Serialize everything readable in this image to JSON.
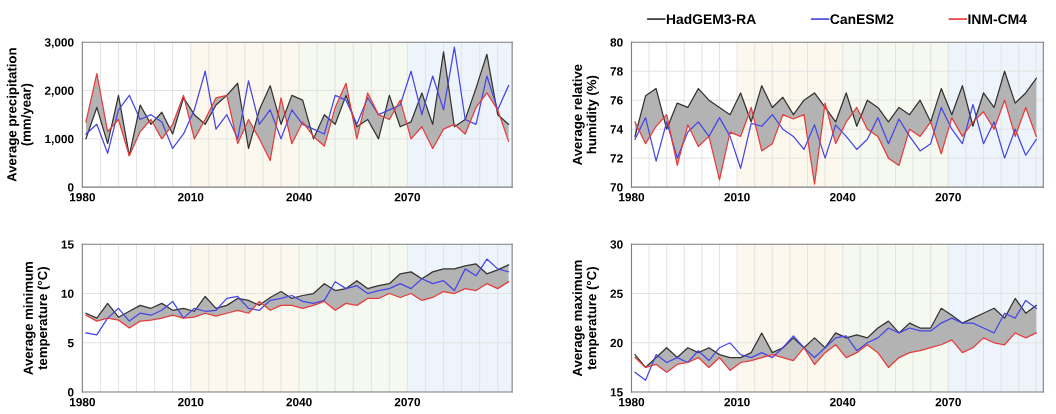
{
  "chart_data": [
    {
      "type": "line",
      "ylabel": "Average precipitation\n(mm/year)",
      "xlim": [
        1980,
        2099
      ],
      "ylim": [
        0,
        3000
      ],
      "xticks": [
        1980,
        {
          "value": 1985,
          "label": null
        },
        {
          "value": 1990,
          "label": null
        },
        {
          "value": 1995,
          "label": null
        },
        {
          "value": 2000,
          "label": null
        },
        {
          "value": 2005,
          "label": null
        },
        2010,
        {
          "value": 2015,
          "label": null
        },
        {
          "value": 2020,
          "label": null
        },
        {
          "value": 2025,
          "label": null
        },
        {
          "value": 2030,
          "label": null
        },
        {
          "value": 2035,
          "label": null
        },
        2040,
        {
          "value": 2045,
          "label": null
        },
        {
          "value": 2050,
          "label": null
        },
        {
          "value": 2055,
          "label": null
        },
        {
          "value": 2060,
          "label": null
        },
        {
          "value": 2065,
          "label": null
        },
        2070,
        {
          "value": 2075,
          "label": null
        },
        {
          "value": 2080,
          "label": null
        },
        {
          "value": 2085,
          "label": null
        },
        {
          "value": 2090,
          "label": null
        },
        {
          "value": 2095,
          "label": null
        }
      ],
      "yticks": [
        0,
        {
          "value": 1000,
          "label": "1,000"
        },
        {
          "value": 2000,
          "label": "2,000"
        },
        {
          "value": 3000,
          "label": "3,000"
        }
      ],
      "grid": true,
      "bands": [
        {
          "axis": "x",
          "from": 2010,
          "to": 2040,
          "color": "#fdf8ee"
        },
        {
          "axis": "x",
          "from": 2040,
          "to": 2070,
          "color": "#f5f9f0"
        },
        {
          "axis": "x",
          "from": 2070,
          "to": 2099,
          "color": "#eef4fb"
        }
      ],
      "x": [
        1981,
        1984,
        1987,
        1990,
        1993,
        1996,
        1999,
        2002,
        2005,
        2008,
        2011,
        2014,
        2017,
        2020,
        2023,
        2026,
        2029,
        2032,
        2035,
        2038,
        2041,
        2044,
        2047,
        2050,
        2053,
        2056,
        2059,
        2062,
        2065,
        2068,
        2071,
        2074,
        2077,
        2080,
        2083,
        2086,
        2089,
        2092,
        2095,
        2098
      ],
      "series": [
        {
          "color": "#333333",
          "values": [
            1000,
            1650,
            900,
            1900,
            650,
            1700,
            1300,
            1550,
            1100,
            1850,
            1500,
            1300,
            1700,
            1900,
            2150,
            800,
            1600,
            2100,
            1300,
            1900,
            1800,
            1000,
            1500,
            1300,
            1900,
            1250,
            1400,
            1000,
            1900,
            1250,
            1350,
            1950,
            1300,
            2800,
            1250,
            1400,
            2050,
            2750,
            1500,
            1300
          ],
          "lower": [
            1350,
            2350,
            1150,
            1400,
            650,
            1150,
            1400,
            1000,
            1300,
            1900,
            1000,
            1400,
            1850,
            1900,
            900,
            1400,
            1000,
            550,
            1850,
            900,
            1350,
            1050,
            850,
            1650,
            2150,
            1000,
            1950,
            1500,
            1400,
            1800,
            1000,
            1250,
            800,
            1200,
            1300,
            1100,
            1650,
            1950,
            1600,
            950
          ],
          "upper": [
            1000,
            1650,
            900,
            1900,
            650,
            1700,
            1300,
            1550,
            1100,
            1850,
            1500,
            1300,
            1700,
            1900,
            2150,
            800,
            1600,
            2100,
            1300,
            1900,
            1800,
            1000,
            1500,
            1300,
            1900,
            1250,
            1400,
            1000,
            1900,
            1250,
            1350,
            1950,
            1300,
            2800,
            1250,
            1400,
            2050,
            2750,
            1500,
            1300
          ]
        },
        {
          "color": "#4646e6",
          "values": [
            1100,
            1300,
            700,
            1600,
            1900,
            1400,
            1500,
            1350,
            800,
            1100,
            1600,
            2400,
            1200,
            1500,
            1000,
            2200,
            1300,
            1600,
            1000,
            1600,
            1300,
            1200,
            1100,
            1900,
            1800,
            1300,
            1850,
            1500,
            1600,
            1700,
            2400,
            1500,
            2300,
            1600,
            2900,
            1400,
            1300,
            2300,
            1600,
            2100
          ]
        },
        {
          "color": "#e63c3c",
          "values": [
            1350,
            2350,
            1150,
            1400,
            650,
            1150,
            1400,
            1000,
            1300,
            1900,
            1000,
            1400,
            1850,
            1900,
            900,
            1400,
            1000,
            550,
            1850,
            900,
            1350,
            1050,
            850,
            1650,
            2150,
            1000,
            1950,
            1500,
            1400,
            1800,
            1000,
            1250,
            800,
            1200,
            1300,
            1100,
            1650,
            1950,
            1600,
            950
          ]
        }
      ]
    },
    {
      "type": "line",
      "ylabel": "Average relative\nhumidity (%)",
      "xlim": [
        1980,
        2097
      ],
      "ylim": [
        70,
        80
      ],
      "xticks": [
        1980,
        {
          "value": 1985,
          "label": null
        },
        {
          "value": 1990,
          "label": null
        },
        {
          "value": 1995,
          "label": null
        },
        {
          "value": 2000,
          "label": null
        },
        {
          "value": 2005,
          "label": null
        },
        2010,
        {
          "value": 2015,
          "label": null
        },
        {
          "value": 2020,
          "label": null
        },
        {
          "value": 2025,
          "label": null
        },
        {
          "value": 2030,
          "label": null
        },
        {
          "value": 2035,
          "label": null
        },
        2040,
        {
          "value": 2045,
          "label": null
        },
        {
          "value": 2050,
          "label": null
        },
        {
          "value": 2055,
          "label": null
        },
        {
          "value": 2060,
          "label": null
        },
        {
          "value": 2065,
          "label": null
        },
        2070,
        {
          "value": 2075,
          "label": null
        },
        {
          "value": 2080,
          "label": null
        },
        {
          "value": 2085,
          "label": null
        },
        {
          "value": 2090,
          "label": null
        },
        {
          "value": 2095,
          "label": null
        }
      ],
      "yticks": [
        70,
        72,
        74,
        76,
        78,
        80
      ],
      "grid": true,
      "legend": "top",
      "bands": [
        {
          "axis": "x",
          "from": 2010,
          "to": 2040,
          "color": "#fdf8ee"
        },
        {
          "axis": "x",
          "from": 2040,
          "to": 2070,
          "color": "#f5f9f0"
        },
        {
          "axis": "x",
          "from": 2070,
          "to": 2097,
          "color": "#eef4fb"
        }
      ],
      "x": [
        1981,
        1984,
        1987,
        1990,
        1993,
        1996,
        1999,
        2002,
        2005,
        2008,
        2011,
        2014,
        2017,
        2020,
        2023,
        2026,
        2029,
        2032,
        2035,
        2038,
        2041,
        2044,
        2047,
        2050,
        2053,
        2056,
        2059,
        2062,
        2065,
        2068,
        2071,
        2074,
        2077,
        2080,
        2083,
        2086,
        2089,
        2092,
        2095
      ],
      "series": [
        {
          "name": "HadGEM3-RA",
          "color": "#333333",
          "values": [
            73.5,
            76.3,
            76.8,
            74,
            75.8,
            75.5,
            76.8,
            76,
            75.5,
            75,
            76.5,
            74.5,
            77,
            75.5,
            76.2,
            75,
            76,
            76.5,
            75.5,
            74.5,
            76.5,
            74.2,
            76,
            75.5,
            74.5,
            75.5,
            75,
            76,
            74.5,
            76.8,
            75,
            77,
            74.2,
            76.5,
            75.5,
            78,
            75.8,
            76.5,
            77.5
          ],
          "lower": [
            74.5,
            73,
            74.2,
            75,
            71.5,
            74.3,
            72.8,
            73.5,
            70.5,
            73.8,
            73.5,
            75.5,
            72.5,
            73,
            75,
            74.7,
            75,
            70.2,
            75.8,
            73,
            74.5,
            75.5,
            74,
            73.5,
            72,
            71.5,
            74,
            73.5,
            74.5,
            72.3,
            74.8,
            73.5,
            74.5,
            75.2,
            74,
            76,
            73.5,
            75.5,
            73.5
          ],
          "upper": [
            73.5,
            76.3,
            76.8,
            74,
            75.8,
            75.5,
            76.8,
            76,
            75.5,
            75,
            76.5,
            74.5,
            77,
            75.5,
            76.2,
            75,
            76,
            76.5,
            75.5,
            74.5,
            76.5,
            74.2,
            76,
            75.5,
            74.5,
            75.5,
            75,
            76,
            74.5,
            76.8,
            75,
            77,
            74.2,
            76.5,
            75.5,
            78,
            75.8,
            76.5,
            77.5
          ]
        },
        {
          "name": "CanESM2",
          "color": "#4646e6",
          "values": [
            73.3,
            74.8,
            71.8,
            74.5,
            72,
            73.8,
            74.5,
            73.5,
            74.8,
            73.5,
            71.3,
            74.4,
            74.2,
            75,
            74,
            73.5,
            72.6,
            74.3,
            72,
            74.3,
            73.5,
            72.6,
            73.3,
            74.8,
            73,
            74.7,
            73.5,
            72.5,
            73,
            75.5,
            74,
            73,
            75.7,
            73,
            74.5,
            72,
            74,
            72.2,
            73.3
          ]
        },
        {
          "name": "INM-CM4",
          "color": "#e63c3c",
          "values": [
            74.5,
            73,
            74.2,
            75,
            71.5,
            74.3,
            72.8,
            73.5,
            70.5,
            73.8,
            73.5,
            75.5,
            72.5,
            73,
            75,
            74.7,
            75,
            70.2,
            75.8,
            73,
            74.5,
            75.5,
            74,
            73.5,
            72,
            71.5,
            74,
            73.5,
            74.5,
            72.3,
            74.8,
            73.5,
            74.5,
            75.2,
            74,
            76,
            73.5,
            75.5,
            73.5
          ]
        }
      ]
    },
    {
      "type": "line",
      "ylabel": "Average minimum\ntemperature (°C)",
      "xlim": [
        1980,
        2099
      ],
      "ylim": [
        0,
        15
      ],
      "xticks": [
        1980,
        {
          "value": 1985,
          "label": null
        },
        {
          "value": 1990,
          "label": null
        },
        {
          "value": 1995,
          "label": null
        },
        {
          "value": 2000,
          "label": null
        },
        {
          "value": 2005,
          "label": null
        },
        2010,
        {
          "value": 2015,
          "label": null
        },
        {
          "value": 2020,
          "label": null
        },
        {
          "value": 2025,
          "label": null
        },
        {
          "value": 2030,
          "label": null
        },
        {
          "value": 2035,
          "label": null
        },
        2040,
        {
          "value": 2045,
          "label": null
        },
        {
          "value": 2050,
          "label": null
        },
        {
          "value": 2055,
          "label": null
        },
        {
          "value": 2060,
          "label": null
        },
        {
          "value": 2065,
          "label": null
        },
        2070,
        {
          "value": 2075,
          "label": null
        },
        {
          "value": 2080,
          "label": null
        },
        {
          "value": 2085,
          "label": null
        },
        {
          "value": 2090,
          "label": null
        },
        {
          "value": 2095,
          "label": null
        }
      ],
      "yticks": [
        0,
        5,
        10,
        15
      ],
      "grid": true,
      "bands": [
        {
          "axis": "x",
          "from": 2010,
          "to": 2040,
          "color": "#fdf8ee"
        },
        {
          "axis": "x",
          "from": 2040,
          "to": 2070,
          "color": "#f5f9f0"
        },
        {
          "axis": "x",
          "from": 2070,
          "to": 2099,
          "color": "#eef4fb"
        }
      ],
      "x": [
        1981,
        1984,
        1987,
        1990,
        1993,
        1996,
        1999,
        2002,
        2005,
        2008,
        2011,
        2014,
        2017,
        2020,
        2023,
        2026,
        2029,
        2032,
        2035,
        2038,
        2041,
        2044,
        2047,
        2050,
        2053,
        2056,
        2059,
        2062,
        2065,
        2068,
        2071,
        2074,
        2077,
        2080,
        2083,
        2086,
        2089,
        2092,
        2095,
        2098
      ],
      "series": [
        {
          "color": "#333333",
          "values": [
            8,
            7.5,
            9,
            7.6,
            8.2,
            8.8,
            8.5,
            9,
            8.3,
            8.5,
            8.2,
            9.7,
            8.5,
            8.8,
            9.5,
            9.3,
            8.8,
            9.6,
            10.2,
            9.5,
            9.8,
            10,
            11,
            10.3,
            10.5,
            11.3,
            10.5,
            10.8,
            11,
            12,
            12.2,
            11.5,
            12.2,
            12.5,
            12.5,
            12.8,
            13,
            12,
            12.4,
            12.9
          ],
          "lower": [
            7.8,
            7.2,
            7.5,
            7.3,
            6.5,
            7.2,
            7.3,
            7.5,
            7.8,
            7.5,
            7.6,
            8,
            7.7,
            8,
            8.3,
            8,
            9.2,
            8.3,
            8.8,
            8.8,
            8.5,
            8.8,
            9.2,
            8.3,
            9,
            8.8,
            9.5,
            9.5,
            10,
            9.6,
            10,
            9.3,
            9.6,
            10.2,
            10,
            10.5,
            10.3,
            11,
            10.5,
            11.2
          ],
          "upper": [
            8,
            7.5,
            9,
            7.6,
            8.2,
            8.8,
            8.5,
            9,
            8.3,
            8.5,
            8.2,
            9.7,
            8.5,
            8.8,
            9.5,
            9.3,
            8.8,
            9.6,
            10.2,
            9.5,
            9.8,
            10,
            11,
            10.3,
            10.5,
            11.3,
            10.5,
            10.8,
            11,
            12,
            12.2,
            11.5,
            12.2,
            12.5,
            12.5,
            12.8,
            13,
            12,
            12.4,
            12.9
          ]
        },
        {
          "color": "#4646e6",
          "values": [
            6,
            5.8,
            7.5,
            8.5,
            7.2,
            8,
            7.8,
            8.3,
            9.2,
            7.5,
            8.5,
            8.2,
            8.3,
            9.5,
            9.7,
            8.5,
            8.3,
            9.3,
            9.5,
            9.8,
            9.2,
            9,
            9.3,
            11.2,
            10.5,
            10.8,
            10,
            10.3,
            10.5,
            11,
            10.5,
            11.5,
            11,
            11.3,
            10.3,
            12.5,
            11.8,
            13.5,
            12.5,
            12.2
          ]
        },
        {
          "color": "#e63c3c",
          "values": [
            7.8,
            7.2,
            7.5,
            7.3,
            6.5,
            7.2,
            7.3,
            7.5,
            7.8,
            7.5,
            7.6,
            8,
            7.7,
            8,
            8.3,
            8,
            9.2,
            8.3,
            8.8,
            8.8,
            8.5,
            8.8,
            9.2,
            8.3,
            9,
            8.8,
            9.5,
            9.5,
            10,
            9.6,
            10,
            9.3,
            9.6,
            10.2,
            10,
            10.5,
            10.3,
            11,
            10.5,
            11.2
          ]
        }
      ]
    },
    {
      "type": "line",
      "ylabel": "Average maximum\ntemperature (°C)",
      "xlim": [
        1980,
        2097
      ],
      "ylim": [
        15,
        30
      ],
      "xticks": [
        1980,
        {
          "value": 1985,
          "label": null
        },
        {
          "value": 1990,
          "label": null
        },
        {
          "value": 1995,
          "label": null
        },
        {
          "value": 2000,
          "label": null
        },
        {
          "value": 2005,
          "label": null
        },
        2010,
        {
          "value": 2015,
          "label": null
        },
        {
          "value": 2020,
          "label": null
        },
        {
          "value": 2025,
          "label": null
        },
        {
          "value": 2030,
          "label": null
        },
        {
          "value": 2035,
          "label": null
        },
        2040,
        {
          "value": 2045,
          "label": null
        },
        {
          "value": 2050,
          "label": null
        },
        {
          "value": 2055,
          "label": null
        },
        {
          "value": 2060,
          "label": null
        },
        {
          "value": 2065,
          "label": null
        },
        2070,
        {
          "value": 2075,
          "label": null
        },
        {
          "value": 2080,
          "label": null
        },
        {
          "value": 2085,
          "label": null
        },
        {
          "value": 2090,
          "label": null
        },
        {
          "value": 2095,
          "label": null
        }
      ],
      "yticks": [
        15,
        20,
        25,
        30
      ],
      "grid": true,
      "bands": [
        {
          "axis": "x",
          "from": 2010,
          "to": 2040,
          "color": "#fdf8ee"
        },
        {
          "axis": "x",
          "from": 2040,
          "to": 2070,
          "color": "#f5f9f0"
        },
        {
          "axis": "x",
          "from": 2070,
          "to": 2097,
          "color": "#eef4fb"
        }
      ],
      "x": [
        1981,
        1984,
        1987,
        1990,
        1993,
        1996,
        1999,
        2002,
        2005,
        2008,
        2011,
        2014,
        2017,
        2020,
        2023,
        2026,
        2029,
        2032,
        2035,
        2038,
        2041,
        2044,
        2047,
        2050,
        2053,
        2056,
        2059,
        2062,
        2065,
        2068,
        2071,
        2074,
        2077,
        2080,
        2083,
        2086,
        2089,
        2092,
        2095
      ],
      "series": [
        {
          "color": "#333333",
          "values": [
            18.8,
            17.5,
            18.5,
            19.5,
            18.5,
            19.5,
            19,
            19.5,
            18.8,
            18.5,
            18.5,
            19,
            21,
            19,
            19.5,
            20.5,
            19.5,
            20.5,
            19.5,
            21,
            20.5,
            20.8,
            20.5,
            21.5,
            22.2,
            21,
            22,
            21.5,
            21.5,
            23.5,
            22.8,
            22,
            22.5,
            23,
            23.5,
            22.5,
            24.5,
            23,
            23.8
          ],
          "lower": [
            18.5,
            17.5,
            17.8,
            17,
            17.8,
            18,
            18.5,
            17.5,
            18.5,
            17.2,
            18,
            18.2,
            18.5,
            18.8,
            18.5,
            18.2,
            19.5,
            17.8,
            19,
            19.8,
            18.5,
            19,
            19.8,
            19,
            17.5,
            18.5,
            19,
            19.2,
            19.5,
            19.8,
            20.3,
            19,
            19.5,
            20.5,
            20,
            19.8,
            21,
            20.5,
            21
          ],
          "upper": [
            18.8,
            17.5,
            18.5,
            19.5,
            18.5,
            19.5,
            19,
            19.5,
            18.8,
            18.5,
            18.5,
            19,
            21,
            19,
            19.5,
            20.5,
            19.5,
            20.5,
            19.5,
            21,
            20.5,
            20.8,
            20.5,
            21.5,
            22.2,
            21,
            22,
            21.5,
            21.5,
            23.5,
            22.8,
            22,
            22.5,
            23,
            23.5,
            22.5,
            24.5,
            23,
            23.8
          ]
        },
        {
          "color": "#4646e6",
          "values": [
            17,
            16.2,
            18.8,
            18,
            18.5,
            18,
            19.2,
            18.2,
            19.5,
            20,
            18.8,
            18.5,
            19,
            18.5,
            19.5,
            20.7,
            19.5,
            18.5,
            19.5,
            20.5,
            20.7,
            19.2,
            20,
            20.5,
            21.5,
            21,
            21.5,
            21.2,
            21.2,
            22,
            22.5,
            22,
            22,
            21.5,
            21,
            23,
            22.5,
            24.3,
            23.5
          ]
        },
        {
          "color": "#e63c3c",
          "values": [
            18.5,
            17.5,
            17.8,
            17,
            17.8,
            18,
            18.5,
            17.5,
            18.5,
            17.2,
            18,
            18.2,
            18.5,
            18.8,
            18.5,
            18.2,
            19.5,
            17.8,
            19,
            19.8,
            18.5,
            19,
            19.8,
            19,
            17.5,
            18.5,
            19,
            19.2,
            19.5,
            19.8,
            20.3,
            19,
            19.5,
            20.5,
            20,
            19.8,
            21,
            20.5,
            21
          ]
        }
      ]
    }
  ]
}
